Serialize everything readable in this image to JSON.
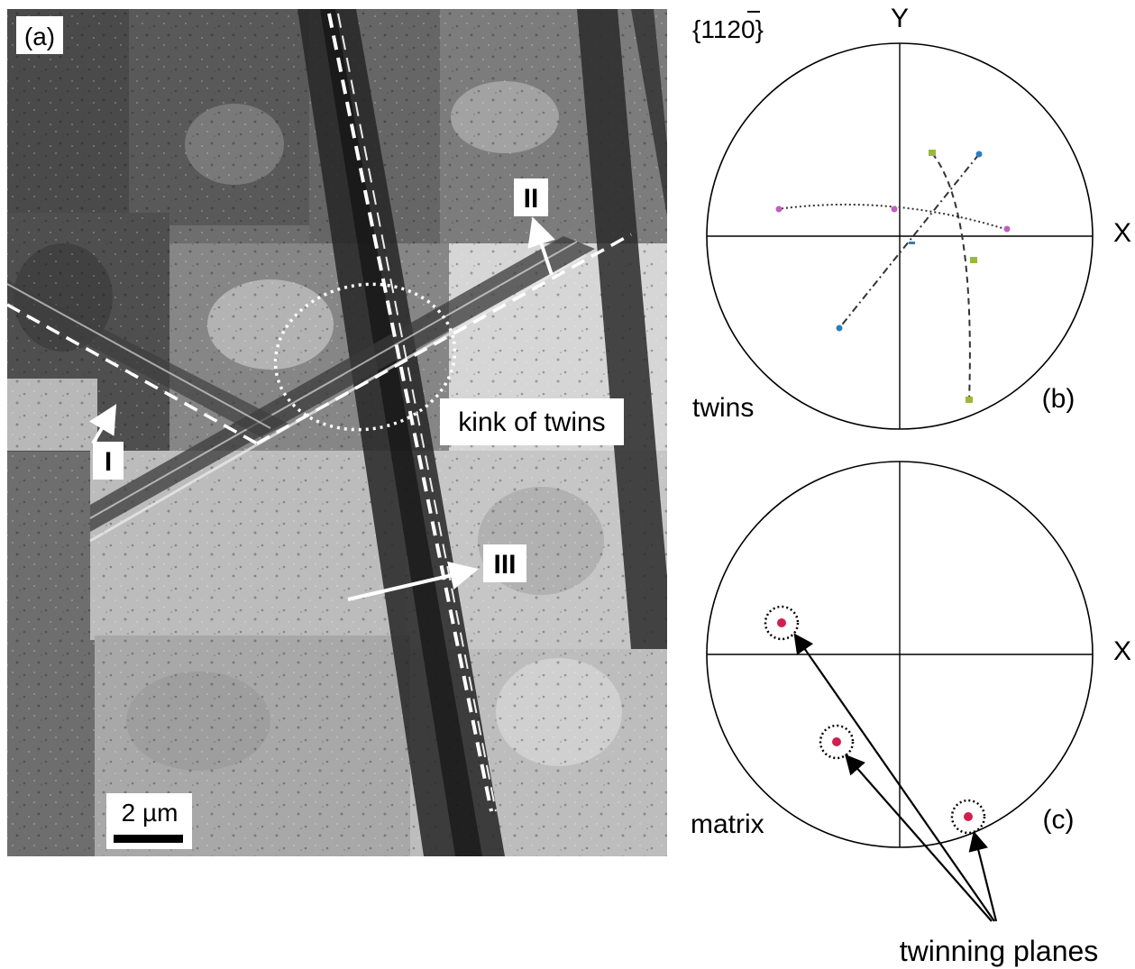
{
  "panel_a": {
    "label": "(a)",
    "roman_labels": [
      "I",
      "II",
      "III"
    ],
    "annotation": "kink of twins",
    "scale_bar": "2 µm"
  },
  "panel_b": {
    "plane_notation": "{11̅̅2̅0}",
    "plane_prefix": "{11",
    "plane_digit": "2",
    "plane_suffix": "0}",
    "axis_y": "Y",
    "axis_x": "X",
    "side_label": "twins",
    "label": "(b)",
    "colors": {
      "magenta": "#c060c0",
      "green": "#9ab83a",
      "blue": "#2a7fc1"
    }
  },
  "panel_c": {
    "axis_x": "X",
    "side_label": "matrix",
    "label": "(c)",
    "spot_color": "#d02050",
    "callout": "twinning planes"
  }
}
